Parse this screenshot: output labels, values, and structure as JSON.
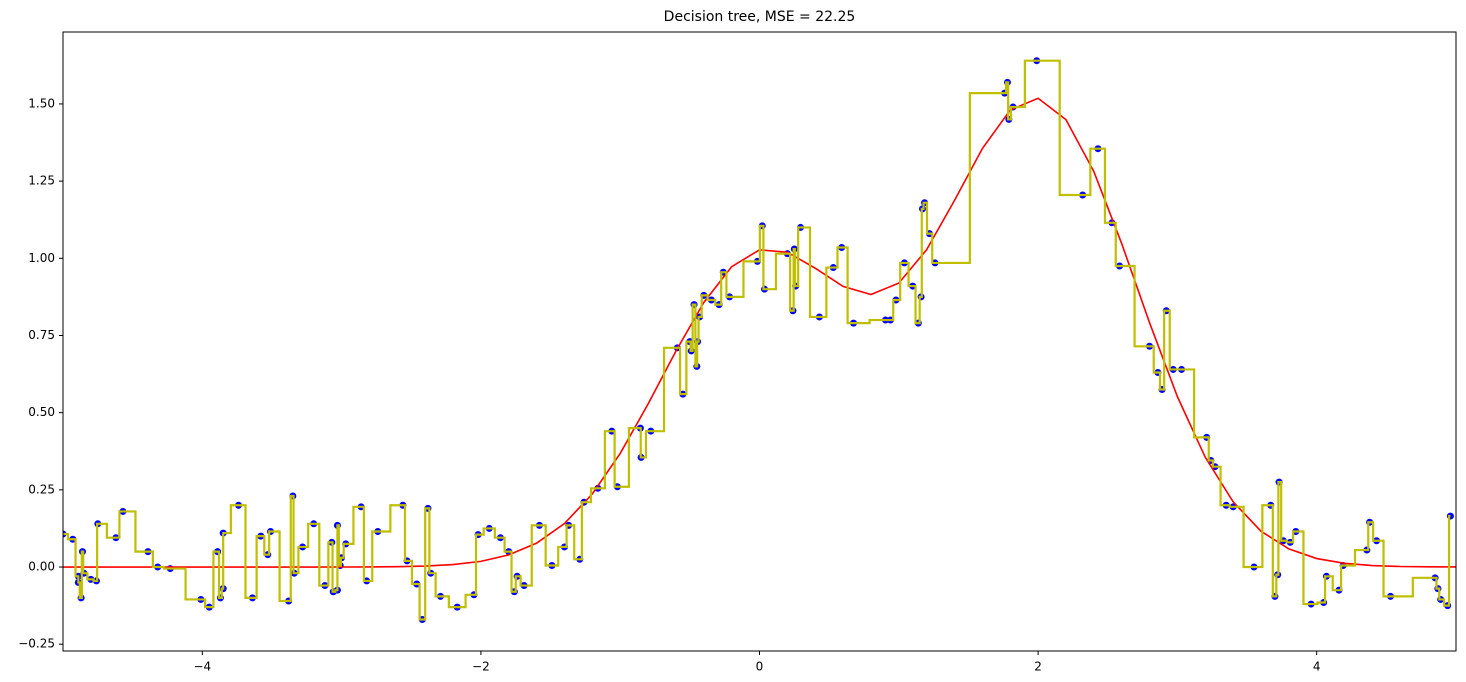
{
  "chart_data": {
    "type": "scatter",
    "title": "Decision tree, MSE = 22.25",
    "xlim": [
      -5,
      5
    ],
    "ylim": [
      -0.272,
      1.733
    ],
    "xticks": [
      {
        "value": -4,
        "label": "−4"
      },
      {
        "value": -2,
        "label": "−2"
      },
      0,
      2,
      4
    ],
    "yticks": [
      {
        "value": -0.25,
        "label": "−0.25"
      },
      {
        "value": 0,
        "label": "0.00"
      },
      {
        "value": 0.25,
        "label": "0.25"
      },
      {
        "value": 0.5,
        "label": "0.50"
      },
      {
        "value": 0.75,
        "label": "0.75"
      },
      {
        "value": 1,
        "label": "1.00"
      },
      {
        "value": 1.25,
        "label": "1.25"
      },
      {
        "value": 1.5,
        "label": "1.50"
      }
    ],
    "series": [
      {
        "type": "scatter",
        "color": "#0000ff",
        "step_color": "#bfbf00",
        "drawstyle": "steps-mid",
        "x": [
          -5.0,
          -4.93,
          -4.89,
          -4.89,
          -4.87,
          -4.86,
          -4.85,
          -4.8,
          -4.76,
          -4.75,
          -4.62,
          -4.57,
          -4.39,
          -4.32,
          -4.23,
          -4.01,
          -3.95,
          -3.89,
          -3.87,
          -3.85,
          -3.85,
          -3.74,
          -3.64,
          -3.58,
          -3.53,
          -3.51,
          -3.38,
          -3.35,
          -3.34,
          -3.28,
          -3.2,
          -3.12,
          -3.07,
          -3.06,
          -3.03,
          -3.03,
          -3.01,
          -3.0,
          -2.97,
          -2.86,
          -2.82,
          -2.74,
          -2.56,
          -2.53,
          -2.46,
          -2.42,
          -2.38,
          -2.36,
          -2.29,
          -2.17,
          -2.05,
          -2.02,
          -1.94,
          -1.86,
          -1.8,
          -1.76,
          -1.74,
          -1.69,
          -1.58,
          -1.49,
          -1.4,
          -1.37,
          -1.29,
          -1.26,
          -1.16,
          -1.06,
          -1.02,
          -0.855,
          -0.85,
          -0.78,
          -0.59,
          -0.55,
          -0.5,
          -0.49,
          -0.47,
          -0.45,
          -0.445,
          -0.43,
          -0.4,
          -0.345,
          -0.29,
          -0.26,
          -0.215,
          -0.015,
          0.02,
          0.036,
          0.2,
          0.24,
          0.25,
          0.26,
          0.295,
          0.43,
          0.53,
          0.59,
          0.675,
          0.905,
          0.94,
          0.98,
          1.04,
          1.1,
          1.14,
          1.16,
          1.17,
          1.185,
          1.22,
          1.26,
          1.76,
          1.78,
          1.79,
          1.82,
          1.99,
          2.32,
          2.43,
          2.53,
          2.585,
          2.8,
          2.86,
          2.89,
          2.92,
          2.97,
          3.03,
          3.21,
          3.24,
          3.27,
          3.35,
          3.4,
          3.55,
          3.67,
          3.7,
          3.72,
          3.73,
          3.76,
          3.81,
          3.85,
          3.96,
          4.05,
          4.07,
          4.16,
          4.19,
          4.36,
          4.38,
          4.43,
          4.53,
          4.85,
          4.87,
          4.89,
          4.94,
          4.96
        ],
        "values": [
          0.107,
          0.09,
          -0.03,
          -0.05,
          -0.1,
          0.05,
          -0.02,
          -0.04,
          -0.045,
          0.14,
          0.095,
          0.18,
          0.05,
          0.0,
          -0.005,
          -0.105,
          -0.13,
          0.05,
          -0.1,
          -0.07,
          0.11,
          0.2,
          -0.1,
          0.1,
          0.04,
          0.115,
          -0.11,
          0.23,
          -0.02,
          0.065,
          0.14,
          -0.06,
          0.08,
          -0.08,
          -0.075,
          0.135,
          0.005,
          0.03,
          0.075,
          0.195,
          -0.045,
          0.115,
          0.2,
          0.02,
          -0.055,
          -0.17,
          0.19,
          -0.02,
          -0.095,
          -0.13,
          -0.09,
          0.105,
          0.125,
          0.095,
          0.05,
          -0.08,
          -0.03,
          -0.06,
          0.135,
          0.005,
          0.065,
          0.135,
          0.025,
          0.21,
          0.255,
          0.44,
          0.26,
          0.45,
          0.355,
          0.44,
          0.71,
          0.56,
          0.73,
          0.7,
          0.85,
          0.65,
          0.73,
          0.81,
          0.88,
          0.865,
          0.85,
          0.955,
          0.875,
          0.99,
          1.105,
          0.9,
          1.015,
          0.83,
          1.03,
          0.91,
          1.1,
          0.81,
          0.97,
          1.035,
          0.79,
          0.8,
          0.8,
          0.865,
          0.985,
          0.91,
          0.79,
          0.875,
          1.16,
          1.18,
          1.08,
          0.985,
          1.535,
          1.57,
          1.45,
          1.49,
          1.64,
          1.205,
          1.355,
          1.115,
          0.975,
          0.715,
          0.63,
          0.575,
          0.83,
          0.64,
          0.64,
          0.42,
          0.345,
          0.325,
          0.2,
          0.195,
          0.0,
          0.2,
          -0.095,
          -0.025,
          0.275,
          0.085,
          0.08,
          0.115,
          -0.12,
          -0.115,
          -0.03,
          -0.075,
          0.005,
          0.055,
          0.145,
          0.085,
          -0.095,
          -0.035,
          -0.07,
          -0.105,
          -0.125,
          0.165
        ]
      },
      {
        "type": "line",
        "color": "#ff0000",
        "x": [
          -5,
          -4.8,
          -4.6,
          -4.4,
          -4.2,
          -4,
          -3.8,
          -3.6,
          -3.4,
          -3.2,
          -3,
          -2.8,
          -2.6,
          -2.4,
          -2.2,
          -2,
          -1.8,
          -1.6,
          -1.4,
          -1.2,
          -1,
          -0.8,
          -0.6,
          -0.4,
          -0.2,
          0,
          0.2,
          0.4,
          0.6,
          0.8,
          1,
          1.2,
          1.4,
          1.6,
          1.8,
          2,
          2.2,
          2.4,
          2.6,
          2.8,
          3,
          3.2,
          3.4,
          3.6,
          3.8,
          4,
          4.2,
          4.4,
          4.6,
          4.8,
          5
        ],
        "values": [
          0,
          0,
          0,
          0,
          0,
          0,
          0,
          0,
          0,
          0,
          0.0001,
          0.0004,
          0.0012,
          0.0032,
          0.0079,
          0.0183,
          0.0392,
          0.0773,
          0.1409,
          0.2369,
          0.3679,
          0.5279,
          0.6994,
          0.8569,
          0.9727,
          1.0275,
          1.0196,
          0.9681,
          0.9091,
          0.8827,
          0.9197,
          1.0279,
          1.1875,
          1.3555,
          1.4804,
          1.5183,
          1.4491,
          1.2814,
          1.0478,
          0.7914,
          0.5519,
          0.3554,
          0.2114,
          0.116,
          0.0588,
          0.0275,
          0.0119,
          0.0048,
          0.0017,
          0.0006,
          0.0002
        ]
      }
    ]
  }
}
